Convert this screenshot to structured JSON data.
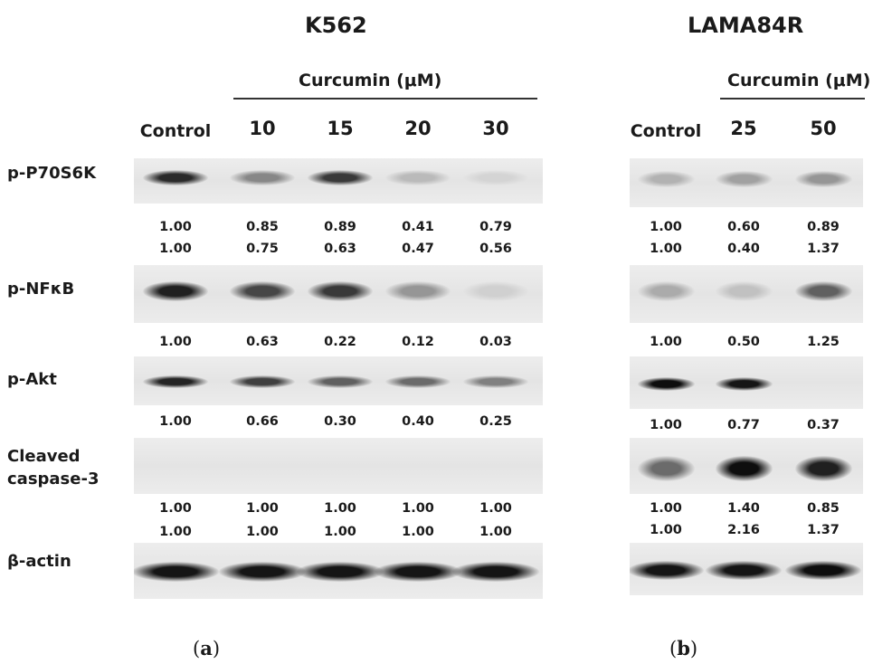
{
  "panels": [
    {
      "id": "a",
      "title": "K562",
      "treatment_label": "Curcumin (μM)",
      "lanes": [
        "Control",
        "10",
        "15",
        "20",
        "30"
      ],
      "caption": "a",
      "blots": [
        {
          "label_lines": [
            "p-P70S6K"
          ],
          "band_intensity": [
            0.85,
            0.42,
            0.78,
            0.18,
            0.06
          ],
          "quant_rows": [
            [
              "1.00",
              "0.85",
              "0.89",
              "0.41",
              "0.79"
            ],
            [
              "1.00",
              "0.75",
              "0.63",
              "0.47",
              "0.56"
            ]
          ]
        },
        {
          "label_lines": [
            "p-NFκB"
          ],
          "band_intensity": [
            0.9,
            0.72,
            0.78,
            0.35,
            0.08
          ],
          "quant_rows": [
            [
              "1.00",
              "0.63",
              "0.22",
              "0.12",
              "0.03"
            ]
          ]
        },
        {
          "label_lines": [
            "p-Akt"
          ],
          "band_intensity": [
            0.88,
            0.75,
            0.6,
            0.55,
            0.45
          ],
          "quant_rows": [
            [
              "1.00",
              "0.66",
              "0.30",
              "0.40",
              "0.25"
            ]
          ]
        },
        {
          "label_lines": [
            "Cleaved",
            "caspase-3"
          ],
          "band_intensity": [
            0,
            0,
            0,
            0,
            0
          ],
          "quant_rows": [
            [
              "1.00",
              "1.00",
              "1.00",
              "1.00",
              "1.00"
            ],
            [
              "1.00",
              "1.00",
              "1.00",
              "1.00",
              "1.00"
            ]
          ]
        },
        {
          "label_lines": [
            "β-actin"
          ],
          "band_intensity": [
            0.95,
            0.95,
            0.95,
            0.95,
            0.95
          ],
          "quant_rows": []
        }
      ]
    },
    {
      "id": "b",
      "title": "LAMA84R",
      "treatment_label": "Curcumin (μM)",
      "lanes": [
        "Control",
        "25",
        "50"
      ],
      "caption": "b",
      "blots": [
        {
          "band_intensity": [
            0.22,
            0.3,
            0.35
          ],
          "quant_rows": [
            [
              "1.00",
              "0.60",
              "0.89"
            ],
            [
              "1.00",
              "0.40",
              "1.37"
            ]
          ]
        },
        {
          "band_intensity": [
            0.25,
            0.15,
            0.6
          ],
          "quant_rows": [
            [
              "1.00",
              "0.50",
              "1.25"
            ]
          ]
        },
        {
          "band_intensity": [
            0.98,
            0.95,
            0
          ],
          "quant_rows": [
            [
              "1.00",
              "0.77",
              "0.37"
            ]
          ]
        },
        {
          "band_intensity": [
            0.55,
            0.98,
            0.9
          ],
          "quant_rows": [
            [
              "1.00",
              "1.40",
              "0.85"
            ],
            [
              "1.00",
              "2.16",
              "1.37"
            ]
          ]
        },
        {
          "band_intensity": [
            0.95,
            0.95,
            0.98
          ],
          "quant_rows": []
        }
      ]
    }
  ]
}
